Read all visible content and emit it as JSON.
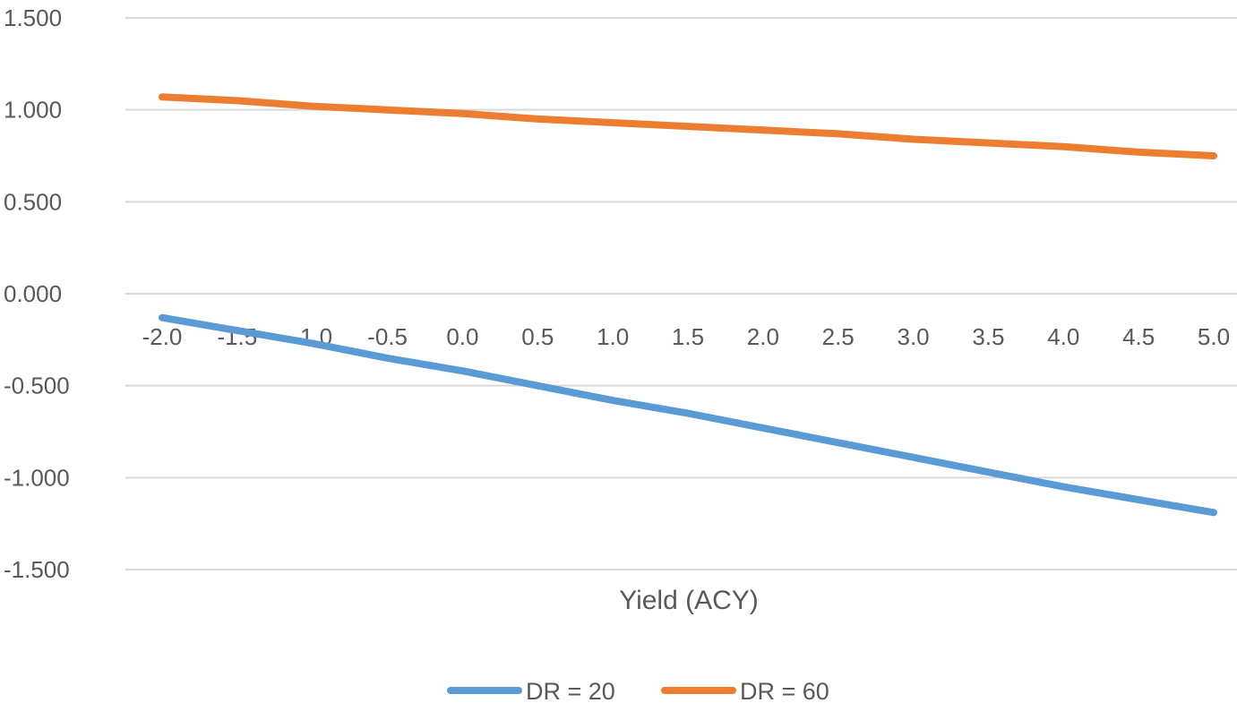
{
  "chart_data": {
    "type": "line",
    "title": "",
    "xlabel": "Yield (ACY)",
    "ylabel": "",
    "x": [
      -2.0,
      -1.5,
      -1.0,
      -0.5,
      0.0,
      0.5,
      1.0,
      1.5,
      2.0,
      2.5,
      3.0,
      3.5,
      4.0,
      4.5,
      5.0
    ],
    "x_tick_labels": [
      "-2.0",
      "-1.5",
      "-1.0",
      "-0.5",
      "0.0",
      "0.5",
      "1.0",
      "1.5",
      "2.0",
      "2.5",
      "3.0",
      "3.5",
      "4.0",
      "4.5",
      "5.0"
    ],
    "y_tick_values": [
      1.5,
      1.0,
      0.5,
      0.0,
      -0.5,
      -1.0,
      -1.5
    ],
    "y_tick_labels": [
      "1.500",
      "1.000",
      "0.500",
      "0.000",
      "-0.500",
      "-1.000",
      "-1.500"
    ],
    "ylim": [
      -1.5,
      1.5
    ],
    "grid": true,
    "legend_position": "bottom",
    "series": [
      {
        "name": "DR = 20",
        "color": "#5B9BD5",
        "values": [
          -0.13,
          -0.2,
          -0.27,
          -0.35,
          -0.42,
          -0.5,
          -0.58,
          -0.65,
          -0.73,
          -0.81,
          -0.89,
          -0.97,
          -1.05,
          -1.12,
          -1.19
        ]
      },
      {
        "name": "DR = 60",
        "color": "#ED7D31",
        "values": [
          1.07,
          1.05,
          1.02,
          1.0,
          0.98,
          0.95,
          0.93,
          0.91,
          0.89,
          0.87,
          0.84,
          0.82,
          0.8,
          0.77,
          0.75
        ]
      }
    ]
  }
}
